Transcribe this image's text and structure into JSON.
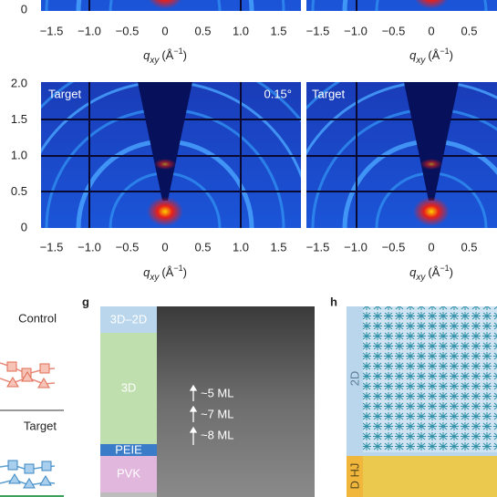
{
  "panel_f": {
    "top_row": {
      "y_tick": "0",
      "left_x_ticks": [
        "−1.5",
        "−1.0",
        "−0.5",
        "0",
        "0.5",
        "1.0",
        "1.5"
      ],
      "right_x_ticks": [
        "−1.5",
        "−1.0",
        "−0.5",
        "0",
        "0.5"
      ]
    },
    "bottom_row": {
      "y_ticks": [
        "2.0",
        "1.5",
        "1.0",
        "0.5",
        "0"
      ],
      "left_title": "Target",
      "left_angle": "0.15°",
      "right_title": "Target",
      "left_x_ticks": [
        "−1.5",
        "−1.0",
        "−0.5",
        "0",
        "0.5",
        "1.0",
        "1.5"
      ],
      "right_x_ticks": [
        "−1.5",
        "−1.0",
        "−0.5",
        "0",
        "0.5"
      ]
    },
    "x_label": {
      "symbol": "q",
      "subscript": "xy",
      "unit": "(Å",
      "exponent": "−1",
      "close": ")"
    }
  },
  "panel_e_legend": {
    "top": "Control",
    "bottom": "Target"
  },
  "panel_g": {
    "letter": "g",
    "layers": [
      "3D–2D",
      "3D",
      "PEIE",
      "PVK"
    ],
    "thickness_labels": [
      "~5 ML",
      "~7 ML",
      "~8 ML"
    ]
  },
  "panel_h": {
    "letter": "h",
    "regions": [
      "2D",
      "D HJ"
    ]
  }
}
